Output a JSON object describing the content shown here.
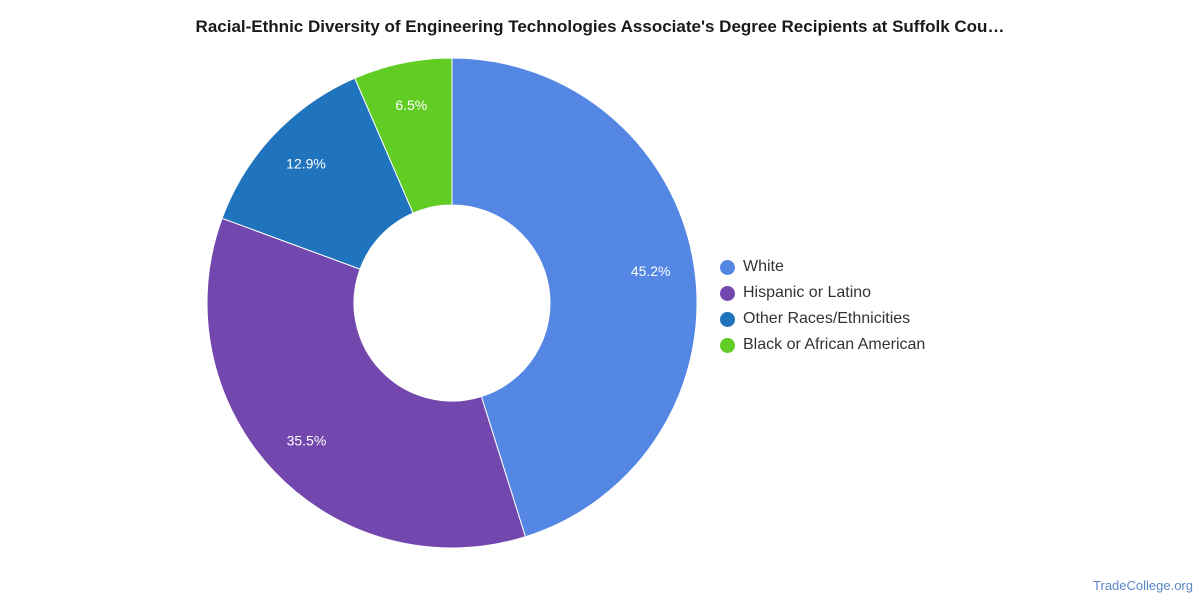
{
  "page": {
    "title": "Racial-Ethnic Diversity of Engineering Technologies Associate's Degree Recipients at Suffolk Cou…",
    "watermark": "TradeCollege.org"
  },
  "chart_data": {
    "type": "pie",
    "donut": true,
    "title": "Racial-Ethnic Diversity of Engineering Technologies Associate's Degree Recipients at Suffolk Cou…",
    "legend_position": "right",
    "slices": [
      {
        "name": "White",
        "value": 45.2,
        "label": "45.2%",
        "color": "#5486e3"
      },
      {
        "name": "Hispanic or Latino",
        "value": 35.5,
        "label": "35.5%",
        "color": "#7348ae"
      },
      {
        "name": "Other Races/Ethnicities",
        "value": 12.9,
        "label": "12.9%",
        "color": "#1f74bd"
      },
      {
        "name": "Black or African American",
        "value": 6.5,
        "label": "6.5%",
        "color": "#60cc24"
      }
    ]
  }
}
